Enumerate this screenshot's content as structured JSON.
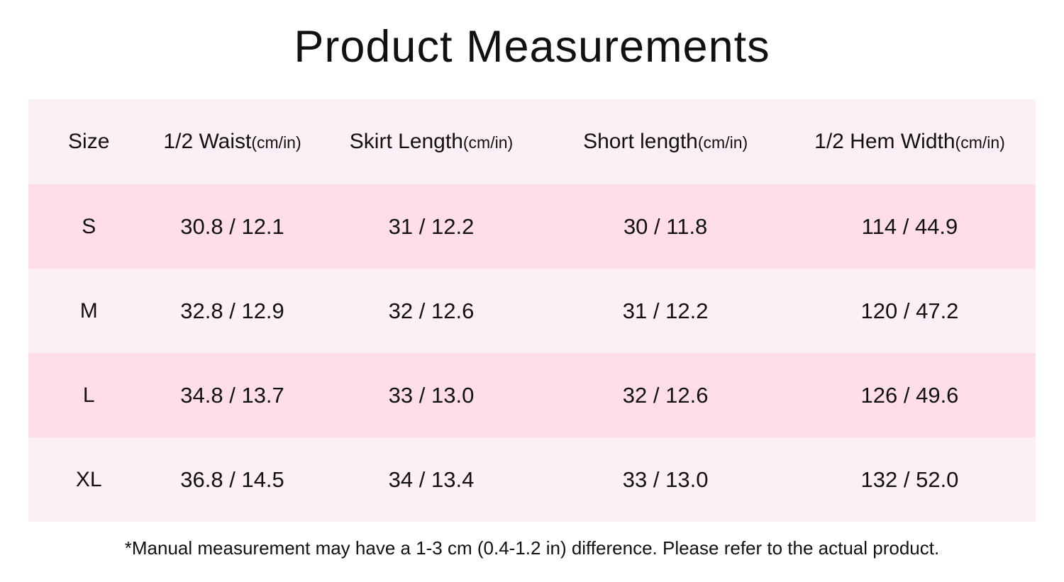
{
  "title": "Product Measurements",
  "table": {
    "columns": [
      {
        "label": "Size",
        "unit": ""
      },
      {
        "label": "1/2 Waist",
        "unit": "(cm/in)"
      },
      {
        "label": "Skirt Length",
        "unit": "(cm/in)"
      },
      {
        "label": "Short length",
        "unit": "(cm/in)"
      },
      {
        "label": "1/2 Hem Width",
        "unit": "(cm/in)"
      }
    ],
    "rows": [
      {
        "size": "S",
        "half_waist": "30.8 / 12.1",
        "skirt_length": "31 / 12.2",
        "short_length": "30 / 11.8",
        "half_hem_width": "114 / 44.9"
      },
      {
        "size": "M",
        "half_waist": "32.8 / 12.9",
        "skirt_length": "32 / 12.6",
        "short_length": "31 / 12.2",
        "half_hem_width": "120 / 47.2"
      },
      {
        "size": "L",
        "half_waist": "34.8 / 13.7",
        "skirt_length": "33 / 13.0",
        "short_length": "32 / 12.6",
        "half_hem_width": "126 / 49.6"
      },
      {
        "size": "XL",
        "half_waist": "36.8 / 14.5",
        "skirt_length": "34 / 13.4",
        "short_length": "33 / 13.0",
        "half_hem_width": "132 / 52.0"
      }
    ]
  },
  "footnote": "*Manual measurement may have a 1-3 cm (0.4-1.2 in) difference. Please refer to the actual product.",
  "colors": {
    "row_light": "#fdeff6",
    "row_dark": "#ffdee8",
    "text": "#111111",
    "background": "#ffffff"
  },
  "chart_data": {
    "type": "table",
    "title": "Product Measurements",
    "columns": [
      "Size",
      "1/2 Waist(cm/in)",
      "Skirt Length(cm/in)",
      "Short length(cm/in)",
      "1/2 Hem Width(cm/in)"
    ],
    "rows": [
      [
        "S",
        "30.8 / 12.1",
        "31 / 12.2",
        "30 / 11.8",
        "114 / 44.9"
      ],
      [
        "M",
        "32.8 / 12.9",
        "32 / 12.6",
        "31 / 12.2",
        "120 / 47.2"
      ],
      [
        "L",
        "34.8 / 13.7",
        "33 / 13.0",
        "32 / 12.6",
        "126 / 49.6"
      ],
      [
        "XL",
        "36.8 / 14.5",
        "34 / 13.4",
        "33 / 13.0",
        "132 / 52.0"
      ]
    ],
    "annotation": "*Manual measurement may have a 1-3 cm (0.4-1.2 in) difference. Please refer to the actual product."
  }
}
